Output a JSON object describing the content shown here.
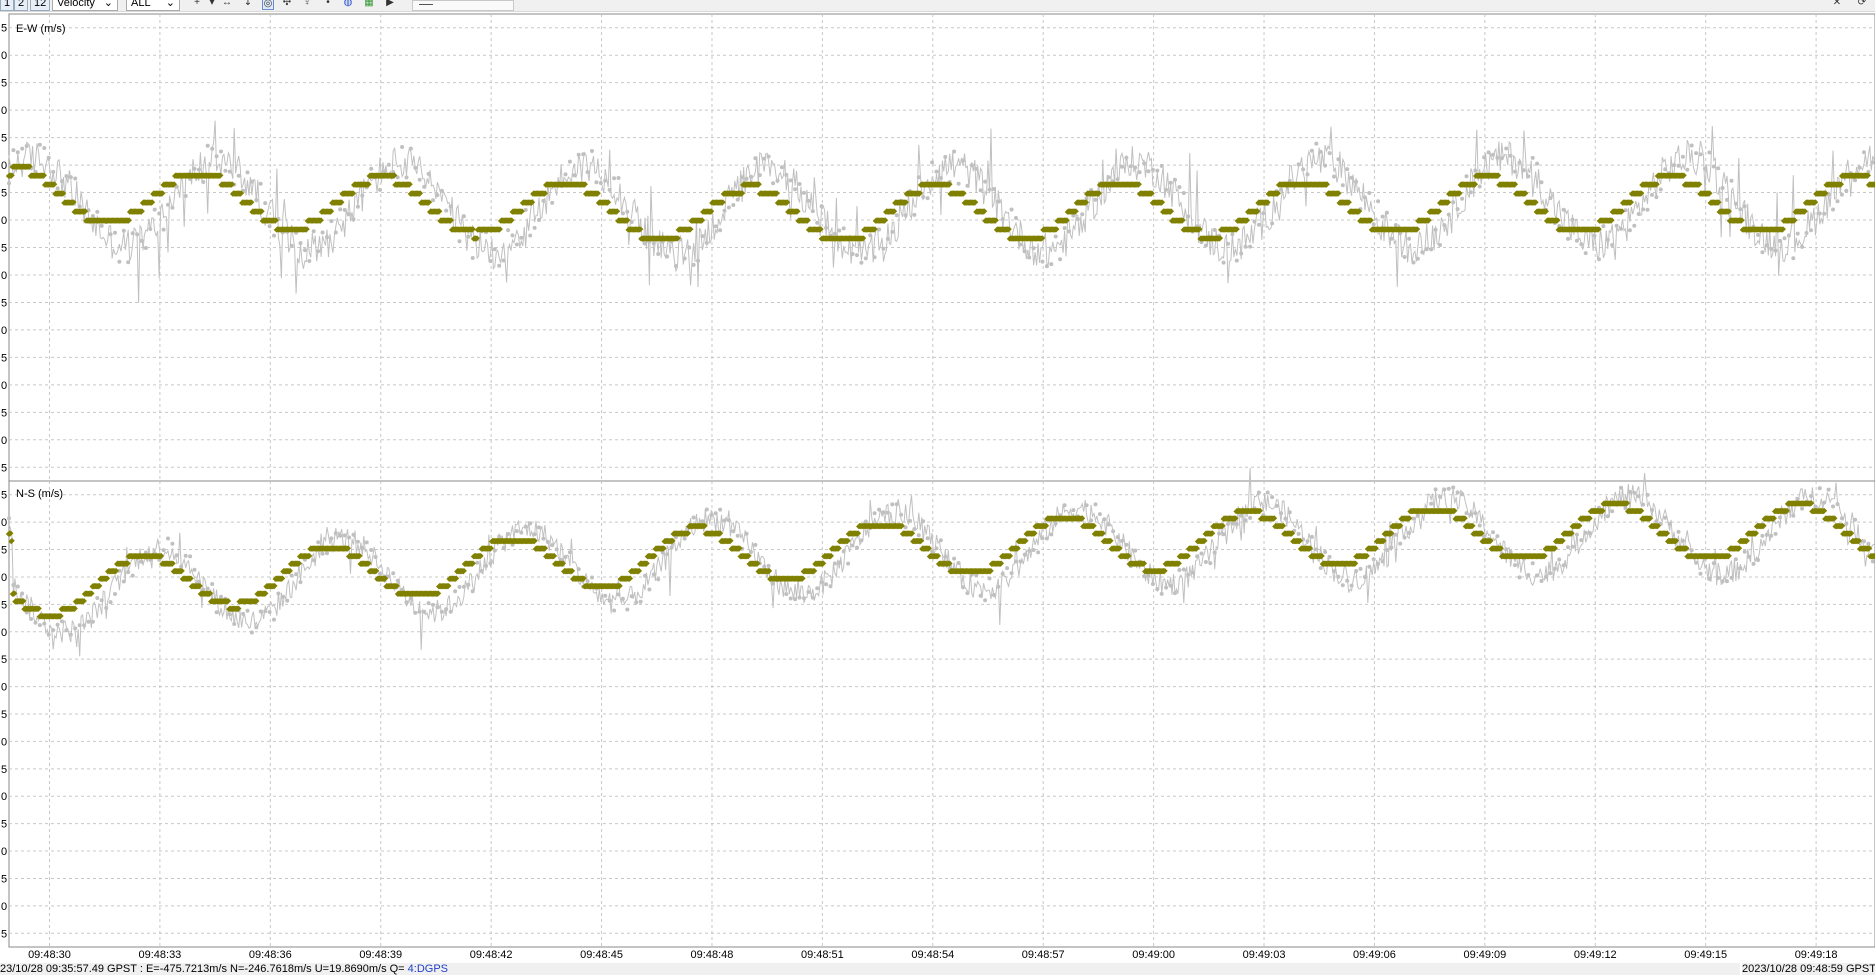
{
  "toolbar": {
    "btn1": "1",
    "btn2": "2",
    "btn12": "12",
    "plot_type": "Velocity",
    "sat_filter": "ALL"
  },
  "status": {
    "left_prefix": "23/10/28 09:35:57.49 GPST : E=-475.7213m/s N=-246.7618m/s U=19.8690m/s Q= ",
    "left_quality": "4:DGPS",
    "right": "2023/10/28 09:48:59 GPST"
  },
  "colors": {
    "primary": "#808000",
    "secondary": "#c0c0c0",
    "grid": "#c8c8c8"
  },
  "chart_data": {
    "type": "scatter",
    "x_tick_labels": [
      "09:48:30",
      "09:48:33",
      "09:48:36",
      "09:48:39",
      "09:48:42",
      "09:48:45",
      "09:48:48",
      "09:48:51",
      "09:48:54",
      "09:48:57",
      "09:49:00",
      "09:49:03",
      "09:49:06",
      "09:49:09",
      "09:49:12",
      "09:49:15",
      "09:49:18"
    ],
    "xlim": [
      "09:48:28.9",
      "09:49:19.6"
    ],
    "panels": [
      {
        "ylabel": "E-W (m/s)",
        "ylim": [
          -0.8,
          0.5
        ],
        "y_tick_label_fragments": [
          "5",
          "0",
          "5",
          "0",
          "5",
          "0",
          "5",
          "0",
          "5",
          "0",
          "5",
          "0",
          "5",
          "0",
          "5",
          "0",
          "5"
        ],
        "series": [
          {
            "type": "binned-stepped-sine",
            "amplitude": 0.075,
            "period_s": 5.0,
            "phase_s": 32.8,
            "mean_trend": [
              [
                29.0,
                0.0
              ],
              [
                49.0,
                -0.06
              ],
              [
                70.0,
                -0.03
              ]
            ],
            "step": 0.025
          },
          {
            "type": "noisy-sine",
            "amplitude": 0.12,
            "period_s": 5.0,
            "phase_s": 33.3,
            "mean_trend": [
              [
                29.0,
                -0.02
              ],
              [
                49.0,
                -0.05
              ],
              [
                70.0,
                -0.02
              ]
            ],
            "spread": 0.05
          }
        ]
      },
      {
        "ylabel": "N-S (m/s)",
        "ylim": [
          -1.4,
          0.15
        ],
        "y_tick_label_fragments": [
          "5",
          "0",
          "5",
          "0",
          "5",
          "0",
          "5",
          "0",
          "5",
          "0",
          "5",
          "0",
          "5",
          "0",
          "5",
          "0",
          "5"
        ],
        "series": [
          {
            "type": "binned-stepped-sine",
            "amplitude": 0.09,
            "period_s": 5.0,
            "phase_s": 36.3,
            "mean_trend": [
              [
                29.0,
                -0.21
              ],
              [
                49.0,
                -0.09
              ],
              [
                70.0,
                -0.02
              ]
            ],
            "step": 0.025
          },
          {
            "type": "noisy-sine",
            "amplitude": 0.13,
            "period_s": 5.0,
            "phase_s": 36.7,
            "mean_trend": [
              [
                29.0,
                -0.23
              ],
              [
                49.0,
                -0.1
              ],
              [
                70.0,
                -0.03
              ]
            ],
            "spread": 0.04
          }
        ]
      }
    ]
  }
}
